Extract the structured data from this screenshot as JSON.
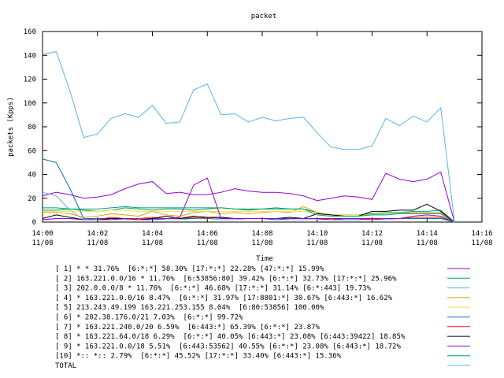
{
  "chart_data": {
    "type": "line",
    "title": "packet",
    "xlabel": "Time",
    "ylabel": "packets (Kpps)",
    "xlim": [
      0,
      16
    ],
    "ylim": [
      0,
      160
    ],
    "yticks": [
      0,
      20,
      40,
      60,
      80,
      100,
      120,
      140,
      160
    ],
    "xticks": [
      {
        "value": 0,
        "label": [
          "14:00",
          "11/08"
        ]
      },
      {
        "value": 2,
        "label": [
          "14:02",
          "11/08"
        ]
      },
      {
        "value": 4,
        "label": [
          "14:04",
          "11/08"
        ]
      },
      {
        "value": 6,
        "label": [
          "14:06",
          "11/08"
        ]
      },
      {
        "value": 8,
        "label": [
          "14:08",
          "11/08"
        ]
      },
      {
        "value": 10,
        "label": [
          "14:10",
          "11/08"
        ]
      },
      {
        "value": 12,
        "label": [
          "14:12",
          "11/08"
        ]
      },
      {
        "value": 14,
        "label": [
          "14:14",
          "11/08"
        ]
      },
      {
        "value": 16,
        "label": [
          "14:16",
          "11/08"
        ]
      }
    ],
    "x": [
      0,
      0.5,
      1,
      1.5,
      2,
      2.5,
      3,
      3.5,
      4,
      4.5,
      5,
      5.5,
      6,
      6.5,
      7,
      7.5,
      8,
      8.5,
      9,
      9.5,
      10,
      10.5,
      11,
      11.5,
      12,
      12.5,
      13,
      13.5,
      14,
      14.5,
      15
    ],
    "series": [
      {
        "name": "[ 1] * * 31.76%  [6:*:*] 58.30% [17:*:*] 22.28% [47:*:*] 15.99%",
        "color": "#9400d3",
        "values": [
          22,
          25,
          23,
          20,
          21,
          23,
          28,
          32,
          34,
          24,
          25,
          23,
          23,
          25,
          28,
          26,
          25,
          25,
          24,
          22,
          18,
          20,
          22,
          21,
          19,
          41,
          36,
          34,
          36,
          42,
          0
        ]
      },
      {
        "name": "[ 2] 163.221.0.0/16 * 11.76%  [6:53856:80] 39.42% [6:*:*] 32.73% [17:*:*] 25.96%",
        "color": "#009e73",
        "values": [
          10,
          10,
          11,
          10,
          9,
          10,
          12,
          11,
          10,
          11,
          11,
          10,
          11,
          12,
          11,
          10,
          11,
          12,
          11,
          11,
          8,
          6,
          6,
          6,
          7,
          8,
          8,
          9,
          9,
          10,
          0
        ]
      },
      {
        "name": "[ 3] 202.0.0.0/8 * 11.76%  [6:*:*] 46.68% [17:*:*] 31.14% [6:*:443] 19.73%",
        "color": "#56b4e9",
        "values": [
          25,
          22,
          10,
          2,
          3,
          3,
          2,
          3,
          3,
          2,
          2,
          3,
          3,
          2,
          2,
          3,
          3,
          2,
          2,
          2,
          2,
          2,
          2,
          2,
          2,
          2,
          3,
          3,
          3,
          3,
          0
        ]
      },
      {
        "name": "[ 4] * 163.221.0.0/16 8.47%  [6:*:*] 31.97% [17:8801:*] 30.67% [6:443:*] 16.62%",
        "color": "#e69f00",
        "values": [
          8,
          8,
          7,
          4,
          5,
          7,
          6,
          5,
          9,
          6,
          5,
          8,
          9,
          7,
          8,
          7,
          8,
          9,
          8,
          13,
          8,
          6,
          6,
          6,
          6,
          7,
          7,
          8,
          8,
          8,
          0
        ]
      },
      {
        "name": "[ 5] 213.243.49.199 163.221.253.155 8.04%  [6:80:53856] 100.00%",
        "color": "#f0e442",
        "values": [
          9,
          9,
          9,
          9,
          9,
          10,
          10,
          9,
          9,
          9,
          9,
          9,
          9,
          9,
          9,
          9,
          9,
          9,
          9,
          9,
          7,
          6,
          6,
          6,
          6,
          7,
          7,
          7,
          7,
          7,
          0
        ]
      },
      {
        "name": "[ 6] * 202.38.176.0/21 7.03%  [6:*:*] 99.72%",
        "color": "#0072b2",
        "values": [
          53,
          50,
          28,
          3,
          3,
          3,
          3,
          2,
          3,
          3,
          3,
          3,
          4,
          3,
          3,
          3,
          3,
          2,
          3,
          3,
          3,
          2,
          2,
          2,
          3,
          3,
          3,
          3,
          3,
          3,
          0
        ]
      },
      {
        "name": "[ 7] * 163.221.240.0/20 6.59%  [6:443:*] 65.39% [6:*:*] 23.87%",
        "color": "#e51e10",
        "values": [
          2,
          3,
          3,
          2,
          2,
          4,
          3,
          3,
          4,
          3,
          3,
          4,
          3,
          4,
          3,
          3,
          3,
          3,
          3,
          3,
          3,
          2,
          3,
          3,
          2,
          3,
          3,
          4,
          4,
          4,
          0
        ]
      },
      {
        "name": "[ 8] * 163.221.64.0/18 6.29%  [6:*:*] 40.05% [6:443:*] 23.08% [6:443:39422] 18.85%",
        "color": "#000000",
        "values": [
          3,
          6,
          4,
          2,
          2,
          3,
          3,
          2,
          3,
          5,
          3,
          5,
          4,
          4,
          3,
          3,
          3,
          3,
          4,
          3,
          7,
          6,
          5,
          5,
          9,
          9,
          10,
          10,
          15,
          9,
          0
        ]
      },
      {
        "name": "[ 9] * 163.221.0.0/18 5.51%  [6:443:53562] 40.55% [6:*:*] 23.08% [6:443:*] 18.72%",
        "color": "#9400d3",
        "values": [
          2,
          3,
          3,
          2,
          2,
          2,
          3,
          2,
          2,
          3,
          4,
          31,
          37,
          3,
          3,
          3,
          3,
          3,
          3,
          3,
          3,
          3,
          3,
          3,
          3,
          3,
          3,
          5,
          6,
          5,
          0
        ]
      },
      {
        "name": "[10] *:: *:: 2.79%  [6:*:*] 45.52% [17:*:*] 33.40% [6:443:*] 15.36%",
        "color": "#009e73",
        "values": [
          12,
          12,
          11,
          11,
          11,
          12,
          13,
          12,
          12,
          12,
          12,
          12,
          12,
          12,
          11,
          11,
          11,
          11,
          11,
          11,
          6,
          5,
          5,
          5,
          6,
          6,
          7,
          7,
          7,
          7,
          0
        ]
      },
      {
        "name": "TOTAL",
        "color": "#56b4e9",
        "values": [
          141,
          143,
          110,
          71,
          74,
          87,
          91,
          88,
          98,
          83,
          84,
          111,
          116,
          90,
          91,
          84,
          88,
          85,
          87,
          88,
          75,
          63,
          61,
          61,
          64,
          87,
          81,
          89,
          84,
          96,
          0
        ]
      }
    ]
  }
}
